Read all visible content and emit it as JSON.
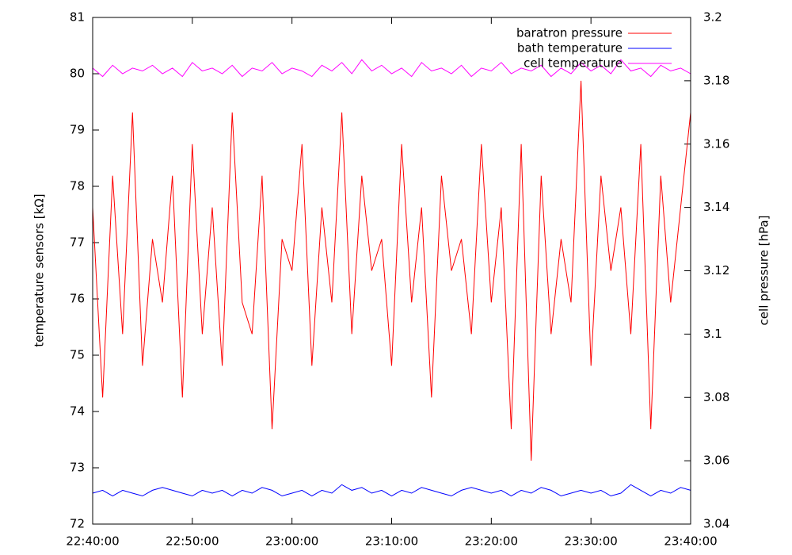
{
  "chart_data": {
    "type": "line",
    "ylabel": "temperature sensors [kΩ]",
    "y2label": "cell pressure [hPa]",
    "legend": "top right",
    "x": [
      "22:40:00",
      "22:41:00",
      "22:42:00",
      "22:43:00",
      "22:44:00",
      "22:45:00",
      "22:46:00",
      "22:47:00",
      "22:48:00",
      "22:49:00",
      "22:50:00",
      "22:51:00",
      "22:52:00",
      "22:53:00",
      "22:54:00",
      "22:55:00",
      "22:56:00",
      "22:57:00",
      "22:58:00",
      "22:59:00",
      "23:00:00",
      "23:01:00",
      "23:02:00",
      "23:03:00",
      "23:04:00",
      "23:05:00",
      "23:06:00",
      "23:07:00",
      "23:08:00",
      "23:09:00",
      "23:10:00",
      "23:11:00",
      "23:12:00",
      "23:13:00",
      "23:14:00",
      "23:15:00",
      "23:16:00",
      "23:17:00",
      "23:18:00",
      "23:19:00",
      "23:20:00",
      "23:21:00",
      "23:22:00",
      "23:23:00",
      "23:24:00",
      "23:25:00",
      "23:26:00",
      "23:27:00",
      "23:28:00",
      "23:29:00",
      "23:30:00",
      "23:31:00",
      "23:32:00",
      "23:33:00",
      "23:34:00",
      "23:35:00",
      "23:36:00",
      "23:37:00",
      "23:38:00",
      "23:39:00",
      "23:40:00"
    ],
    "xlim": [
      "22:40:00",
      "23:40:00"
    ],
    "xticks": [
      "22:40:00",
      "22:50:00",
      "23:00:00",
      "23:10:00",
      "23:20:00",
      "23:30:00",
      "23:40:00"
    ],
    "ylim": [
      72,
      81
    ],
    "yticks": [
      72,
      73,
      74,
      75,
      76,
      77,
      78,
      79,
      80,
      81
    ],
    "y2lim": [
      3.04,
      3.2
    ],
    "y2ticks": [
      3.04,
      3.06,
      3.08,
      3.1,
      3.12,
      3.14,
      3.16,
      3.18,
      3.2
    ],
    "series": [
      {
        "name": "baratron pressure",
        "color": "#ff0000",
        "axis": "y2",
        "values": [
          3.14,
          3.08,
          3.15,
          3.1,
          3.17,
          3.09,
          3.13,
          3.11,
          3.15,
          3.08,
          3.16,
          3.1,
          3.14,
          3.09,
          3.17,
          3.11,
          3.1,
          3.15,
          3.07,
          3.13,
          3.12,
          3.16,
          3.09,
          3.14,
          3.11,
          3.17,
          3.1,
          3.15,
          3.12,
          3.13,
          3.09,
          3.16,
          3.11,
          3.14,
          3.08,
          3.15,
          3.12,
          3.13,
          3.1,
          3.16,
          3.11,
          3.14,
          3.07,
          3.16,
          3.06,
          3.15,
          3.1,
          3.13,
          3.11,
          3.18,
          3.09,
          3.15,
          3.12,
          3.14,
          3.1,
          3.16,
          3.07,
          3.15,
          3.11,
          3.14,
          3.17
        ]
      },
      {
        "name": "bath temperature",
        "color": "#0000ff",
        "values": [
          72.55,
          72.6,
          72.5,
          72.6,
          72.55,
          72.5,
          72.6,
          72.65,
          72.6,
          72.55,
          72.5,
          72.6,
          72.55,
          72.6,
          72.5,
          72.6,
          72.55,
          72.65,
          72.6,
          72.5,
          72.55,
          72.6,
          72.5,
          72.6,
          72.55,
          72.7,
          72.6,
          72.65,
          72.55,
          72.6,
          72.5,
          72.6,
          72.55,
          72.65,
          72.6,
          72.55,
          72.5,
          72.6,
          72.65,
          72.6,
          72.55,
          72.6,
          72.5,
          72.6,
          72.55,
          72.65,
          72.6,
          72.5,
          72.55,
          72.6,
          72.55,
          72.6,
          72.5,
          72.55,
          72.7,
          72.6,
          72.5,
          72.6,
          72.55,
          72.65,
          72.6
        ]
      },
      {
        "name": "cell temperature",
        "color": "#ff00ff",
        "values": [
          80.1,
          79.95,
          80.15,
          80.0,
          80.1,
          80.05,
          80.15,
          80.0,
          80.1,
          79.95,
          80.2,
          80.05,
          80.1,
          80.0,
          80.15,
          79.95,
          80.1,
          80.05,
          80.2,
          80.0,
          80.1,
          80.05,
          79.95,
          80.15,
          80.05,
          80.2,
          80.0,
          80.25,
          80.05,
          80.15,
          80.0,
          80.1,
          79.95,
          80.2,
          80.05,
          80.1,
          80.0,
          80.15,
          79.95,
          80.1,
          80.05,
          80.2,
          80.0,
          80.1,
          80.05,
          80.15,
          79.95,
          80.1,
          80.0,
          80.2,
          80.05,
          80.15,
          80.0,
          80.25,
          80.05,
          80.1,
          79.95,
          80.15,
          80.05,
          80.1,
          80.0
        ]
      }
    ]
  }
}
